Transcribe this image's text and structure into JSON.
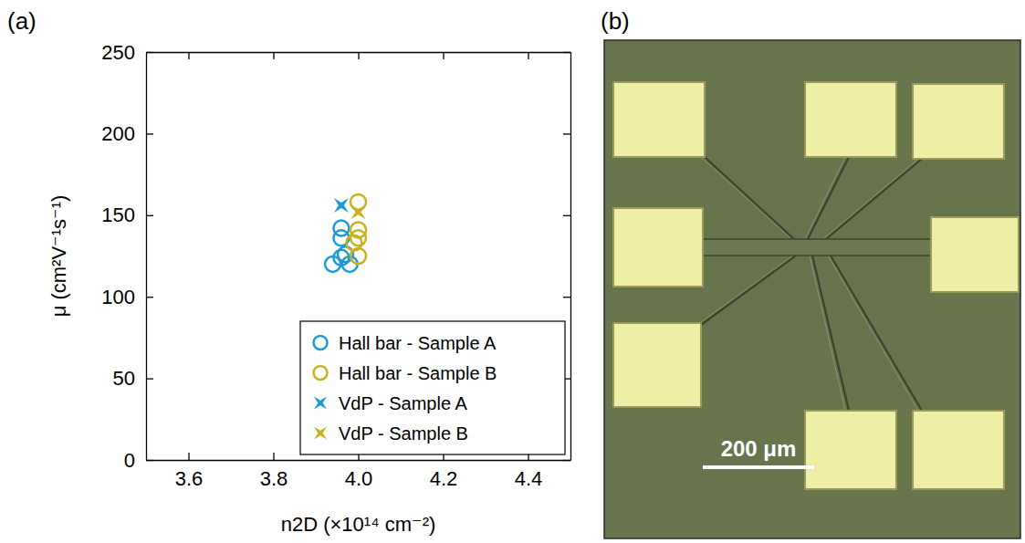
{
  "chart_data": {
    "type": "scatter",
    "x_label": "n2D (×10¹⁴ cm⁻²)",
    "y_label": "μ (cm²V⁻¹s⁻¹)",
    "xlim": [
      3.5,
      4.5
    ],
    "ylim": [
      0,
      250
    ],
    "xticks": [
      3.6,
      3.8,
      {
        "value": 4,
        "label": "4.0"
      },
      4.2,
      4.4
    ],
    "yticks": [
      0,
      50,
      100,
      150,
      200,
      250
    ],
    "legend": "lower right",
    "series": [
      {
        "name": "Hall bar - Sample A",
        "color": "#1e9ad6",
        "marker": "circle",
        "x": [
          3.96,
          3.96,
          3.97,
          3.96,
          3.94,
          3.98
        ],
        "values": [
          142,
          136,
          126,
          124,
          120,
          120
        ]
      },
      {
        "name": "Hall bar - Sample B",
        "color": "#c9b11c",
        "marker": "circle",
        "x": [
          4.0,
          4.0,
          4.0,
          3.99,
          4.0
        ],
        "values": [
          158,
          141,
          136,
          133,
          125
        ]
      },
      {
        "name": "VdP - Sample A",
        "color": "#1e9ad6",
        "marker": "star",
        "x": [
          3.96
        ],
        "values": [
          156
        ]
      },
      {
        "name": "VdP - Sample B",
        "color": "#c9b11c",
        "marker": "star",
        "x": [
          4.0
        ],
        "values": [
          152
        ]
      }
    ]
  },
  "figure": {
    "panel_labels": [
      "(a)",
      "(b)"
    ],
    "micrograph": {
      "scale_bar_label": "200 μm"
    }
  }
}
